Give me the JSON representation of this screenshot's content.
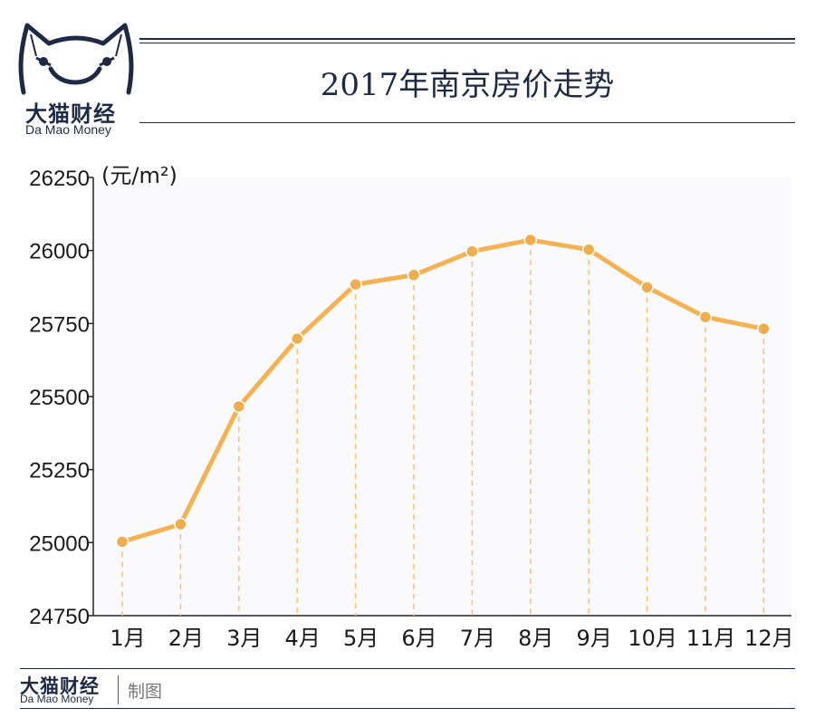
{
  "brand": {
    "name_cn": "大猫财经",
    "name_en": "Da Mao Money",
    "color": "#1e2a44"
  },
  "footer": {
    "credit": "制图"
  },
  "chart_data": {
    "type": "line",
    "title": "2017年南京房价走势",
    "ylabel": "(元/m²)",
    "xlabel": "",
    "categories": [
      "1月",
      "2月",
      "3月",
      "4月",
      "5月",
      "6月",
      "7月",
      "8月",
      "9月",
      "10月",
      "11月",
      "12月"
    ],
    "values": [
      25003,
      25063,
      25466,
      25698,
      25884,
      25916,
      25997,
      26036,
      26003,
      25874,
      25772,
      25732
    ],
    "ylim": [
      24750,
      26250
    ],
    "yticks": [
      "26250",
      "26000",
      "25750",
      "25500",
      "25250",
      "25000",
      "24750"
    ],
    "grid": false,
    "drop_lines": true,
    "line_color": "#f5b253",
    "marker_color": "#f0ad4e",
    "drop_line_color": "#f5c07a",
    "area_color": "#fafafc"
  }
}
